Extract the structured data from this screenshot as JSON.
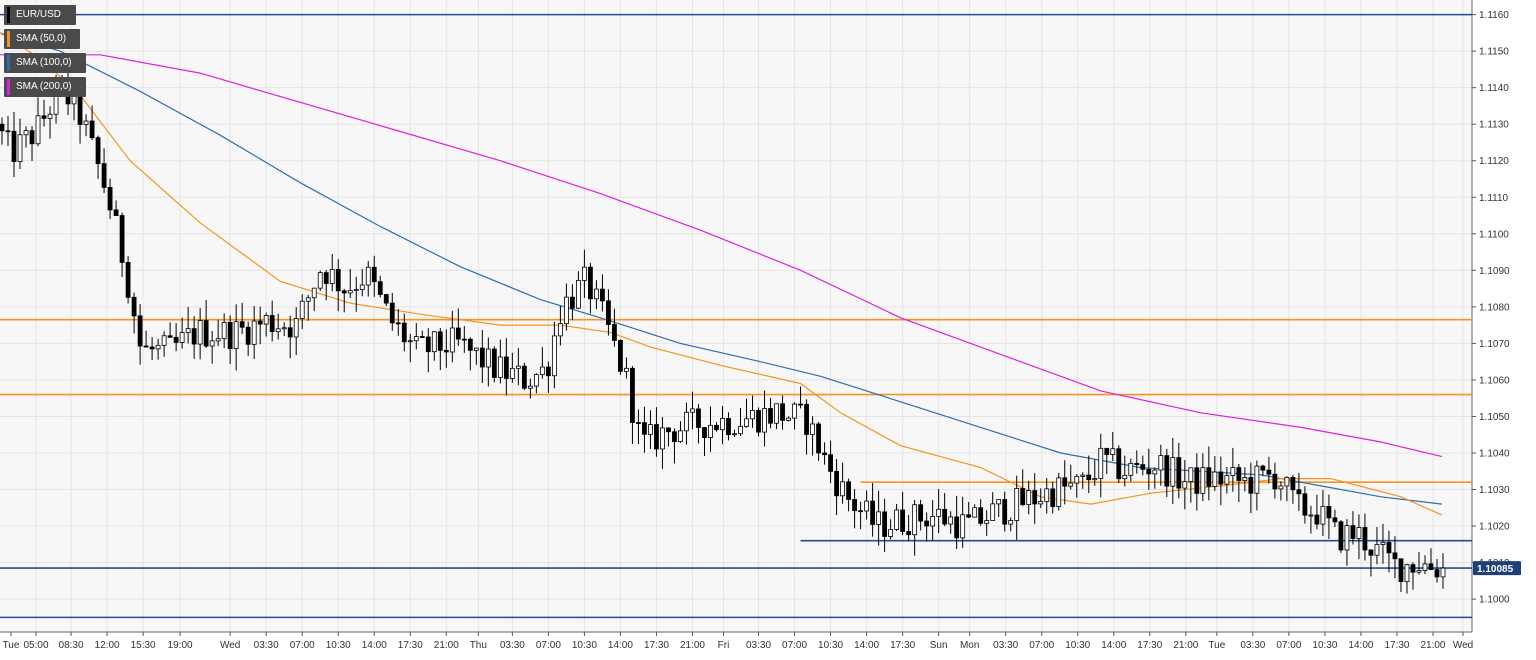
{
  "chart_data": {
    "type": "candlestick",
    "symbol": "EUR/USD",
    "y_range": [
      1.0991,
      1.1164
    ],
    "y_ticks": [
      1.1,
      1.101,
      1.102,
      1.103,
      1.104,
      1.105,
      1.106,
      1.107,
      1.108,
      1.109,
      1.11,
      1.111,
      1.112,
      1.113,
      1.114,
      1.115,
      1.116
    ],
    "y_tick_labels": [
      "1.1000",
      "1.1010",
      "1.1020",
      "1.1030",
      "1.1040",
      "1.1050",
      "1.1060",
      "1.1070",
      "1.1080",
      "1.1090",
      "1.1100",
      "1.1110",
      "1.1120",
      "1.1130",
      "1.1140",
      "1.1150",
      "1.1160"
    ],
    "x_tick_labels": [
      "Tue",
      "05:00",
      "08:30",
      "12:00",
      "15:30",
      "19:00",
      "Wed",
      "03:30",
      "07:00",
      "10:30",
      "14:00",
      "17:30",
      "21:00",
      "Thu",
      "03:30",
      "07:00",
      "10:30",
      "14:00",
      "17:30",
      "21:00",
      "Fri",
      "03:30",
      "07:00",
      "10:30",
      "14:00",
      "17:30",
      "Sun",
      "Mon",
      "03:30",
      "07:00",
      "10:30",
      "14:00",
      "17:30",
      "21:00",
      "Tue",
      "03:30",
      "07:00",
      "10:30",
      "14:00",
      "17:30",
      "21:00",
      "Wed"
    ],
    "x_range_index": [
      0,
      1441
    ],
    "x_tick_index": [
      11,
      36,
      71,
      107,
      143,
      180,
      230,
      266,
      302,
      338,
      374,
      410,
      446,
      478,
      512,
      548,
      584,
      620,
      656,
      692,
      723,
      758,
      794,
      830,
      866,
      902,
      938,
      969,
      1005,
      1041,
      1077,
      1113,
      1149,
      1185,
      1216,
      1252,
      1288,
      1324,
      1360,
      1396,
      1432,
      1462
    ],
    "current_price": 1.10085,
    "current_price_label": "1.10085",
    "series": [
      {
        "name": "EUR/USD",
        "color": "#000000"
      },
      {
        "name": "SMA (50,0)",
        "color": "#f7931e"
      },
      {
        "name": "SMA (100,0)",
        "color": "#2e6db4"
      },
      {
        "name": "SMA (200,0)",
        "color": "#e020e0"
      }
    ],
    "sma_50": [
      {
        "x": 0,
        "y": 1.1155
      },
      {
        "x": 40,
        "y": 1.1148
      },
      {
        "x": 80,
        "y": 1.1138
      },
      {
        "x": 130,
        "y": 1.112
      },
      {
        "x": 200,
        "y": 1.1103
      },
      {
        "x": 280,
        "y": 1.1087
      },
      {
        "x": 350,
        "y": 1.1081
      },
      {
        "x": 420,
        "y": 1.1078
      },
      {
        "x": 500,
        "y": 1.1075
      },
      {
        "x": 560,
        "y": 1.1075
      },
      {
        "x": 610,
        "y": 1.1073
      },
      {
        "x": 650,
        "y": 1.1069
      },
      {
        "x": 720,
        "y": 1.1064
      },
      {
        "x": 800,
        "y": 1.1059
      },
      {
        "x": 840,
        "y": 1.1051
      },
      {
        "x": 900,
        "y": 1.1042
      },
      {
        "x": 980,
        "y": 1.1036
      },
      {
        "x": 1040,
        "y": 1.1028
      },
      {
        "x": 1090,
        "y": 1.1026
      },
      {
        "x": 1150,
        "y": 1.1029
      },
      {
        "x": 1220,
        "y": 1.1031
      },
      {
        "x": 1280,
        "y": 1.1033
      },
      {
        "x": 1330,
        "y": 1.1033
      },
      {
        "x": 1400,
        "y": 1.1028
      },
      {
        "x": 1441,
        "y": 1.1023
      }
    ],
    "sma_100": [
      {
        "x": 0,
        "y": 1.1155
      },
      {
        "x": 60,
        "y": 1.115
      },
      {
        "x": 140,
        "y": 1.1139
      },
      {
        "x": 220,
        "y": 1.1127
      },
      {
        "x": 300,
        "y": 1.1114
      },
      {
        "x": 380,
        "y": 1.1102
      },
      {
        "x": 460,
        "y": 1.1091
      },
      {
        "x": 540,
        "y": 1.1082
      },
      {
        "x": 600,
        "y": 1.1077
      },
      {
        "x": 680,
        "y": 1.107
      },
      {
        "x": 760,
        "y": 1.1065
      },
      {
        "x": 820,
        "y": 1.1061
      },
      {
        "x": 900,
        "y": 1.1054
      },
      {
        "x": 980,
        "y": 1.1047
      },
      {
        "x": 1060,
        "y": 1.104
      },
      {
        "x": 1140,
        "y": 1.1036
      },
      {
        "x": 1200,
        "y": 1.1035
      },
      {
        "x": 1260,
        "y": 1.1034
      },
      {
        "x": 1320,
        "y": 1.1031
      },
      {
        "x": 1380,
        "y": 1.1028
      },
      {
        "x": 1441,
        "y": 1.1026
      }
    ],
    "sma_200": [
      {
        "x": 0,
        "y": 1.1149
      },
      {
        "x": 100,
        "y": 1.1149
      },
      {
        "x": 200,
        "y": 1.1144
      },
      {
        "x": 300,
        "y": 1.1136
      },
      {
        "x": 400,
        "y": 1.1128
      },
      {
        "x": 500,
        "y": 1.112
      },
      {
        "x": 600,
        "y": 1.1111
      },
      {
        "x": 700,
        "y": 1.1101
      },
      {
        "x": 800,
        "y": 1.109
      },
      {
        "x": 900,
        "y": 1.1077
      },
      {
        "x": 1000,
        "y": 1.1067
      },
      {
        "x": 1100,
        "y": 1.1057
      },
      {
        "x": 1200,
        "y": 1.1051
      },
      {
        "x": 1300,
        "y": 1.1047
      },
      {
        "x": 1380,
        "y": 1.1043
      },
      {
        "x": 1441,
        "y": 1.1039
      }
    ],
    "price_path": [
      {
        "x": 0,
        "y": 1.113
      },
      {
        "x": 15,
        "y": 1.1122
      },
      {
        "x": 40,
        "y": 1.1128
      },
      {
        "x": 65,
        "y": 1.114
      },
      {
        "x": 85,
        "y": 1.1132
      },
      {
        "x": 110,
        "y": 1.1112
      },
      {
        "x": 130,
        "y": 1.109
      },
      {
        "x": 145,
        "y": 1.1068
      },
      {
        "x": 175,
        "y": 1.1068
      },
      {
        "x": 200,
        "y": 1.1073
      },
      {
        "x": 240,
        "y": 1.1073
      },
      {
        "x": 270,
        "y": 1.1076
      },
      {
        "x": 300,
        "y": 1.1075
      },
      {
        "x": 325,
        "y": 1.1091
      },
      {
        "x": 350,
        "y": 1.1085
      },
      {
        "x": 370,
        "y": 1.1089
      },
      {
        "x": 395,
        "y": 1.1076
      },
      {
        "x": 420,
        "y": 1.1068
      },
      {
        "x": 460,
        "y": 1.107
      },
      {
        "x": 500,
        "y": 1.1063
      },
      {
        "x": 530,
        "y": 1.106
      },
      {
        "x": 550,
        "y": 1.1063
      },
      {
        "x": 565,
        "y": 1.108
      },
      {
        "x": 590,
        "y": 1.1087
      },
      {
        "x": 610,
        "y": 1.1075
      },
      {
        "x": 630,
        "y": 1.106
      },
      {
        "x": 645,
        "y": 1.1042
      },
      {
        "x": 670,
        "y": 1.1046
      },
      {
        "x": 700,
        "y": 1.1048
      },
      {
        "x": 740,
        "y": 1.1049
      },
      {
        "x": 780,
        "y": 1.1051
      },
      {
        "x": 810,
        "y": 1.1049
      },
      {
        "x": 830,
        "y": 1.1037
      },
      {
        "x": 850,
        "y": 1.1028
      },
      {
        "x": 880,
        "y": 1.102
      },
      {
        "x": 910,
        "y": 1.1022
      },
      {
        "x": 940,
        "y": 1.1023
      },
      {
        "x": 970,
        "y": 1.102
      },
      {
        "x": 1000,
        "y": 1.1024
      },
      {
        "x": 1030,
        "y": 1.1027
      },
      {
        "x": 1060,
        "y": 1.103
      },
      {
        "x": 1085,
        "y": 1.1031
      },
      {
        "x": 1105,
        "y": 1.1038
      },
      {
        "x": 1130,
        "y": 1.1035
      },
      {
        "x": 1160,
        "y": 1.1037
      },
      {
        "x": 1190,
        "y": 1.1032
      },
      {
        "x": 1220,
        "y": 1.1033
      },
      {
        "x": 1250,
        "y": 1.1032
      },
      {
        "x": 1280,
        "y": 1.1034
      },
      {
        "x": 1300,
        "y": 1.1025
      },
      {
        "x": 1320,
        "y": 1.1024
      },
      {
        "x": 1340,
        "y": 1.1017
      },
      {
        "x": 1360,
        "y": 1.1018
      },
      {
        "x": 1380,
        "y": 1.1013
      },
      {
        "x": 1400,
        "y": 1.1009
      },
      {
        "x": 1420,
        "y": 1.101
      },
      {
        "x": 1441,
        "y": 1.10085
      }
    ],
    "horizontal_levels": [
      {
        "y": 1.116,
        "color": "#1f4e99",
        "x_start": null
      },
      {
        "y": 1.10765,
        "color": "#f7931e",
        "x_start": null
      },
      {
        "y": 1.1056,
        "color": "#f7931e",
        "x_start": null
      },
      {
        "y": 1.1032,
        "color": "#f7931e",
        "x_start": 860
      },
      {
        "y": 1.1016,
        "color": "#1f4e99",
        "x_start": 800
      },
      {
        "y": 1.10085,
        "color": "#1f4e99",
        "x_start": null
      },
      {
        "y": 1.0995,
        "color": "#1f4e99",
        "x_start": null
      }
    ],
    "grid": true,
    "legend_position": "top-left"
  }
}
